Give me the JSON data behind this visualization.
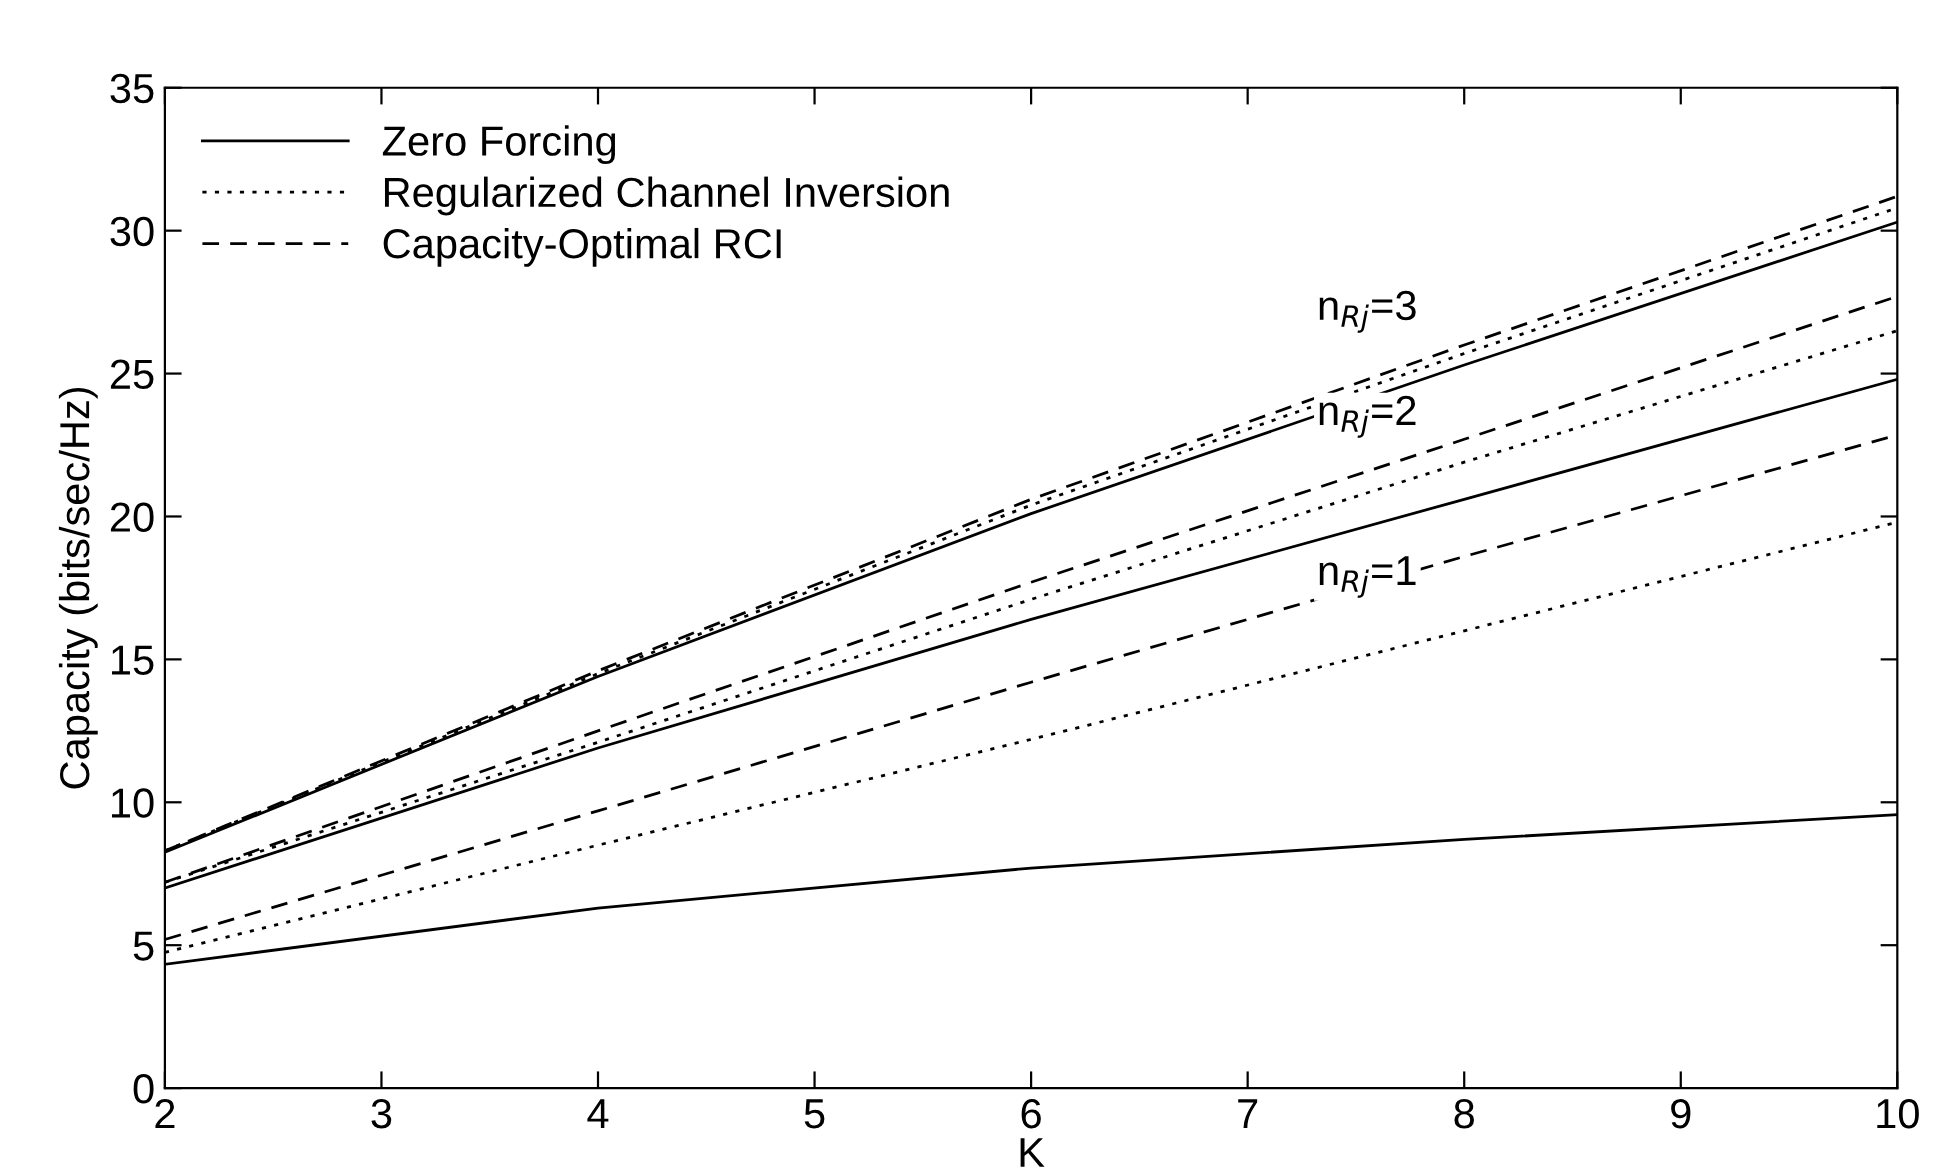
{
  "chart_data": {
    "type": "line",
    "xlabel": "K",
    "ylabel": "Capacity (bits/sec/Hz)",
    "x": [
      2,
      4,
      6,
      8,
      10
    ],
    "xlim": [
      2,
      10
    ],
    "xticks": [
      2,
      3,
      4,
      5,
      6,
      7,
      8,
      9,
      10
    ],
    "ylim": [
      0,
      35
    ],
    "yticks": [
      0,
      5,
      10,
      15,
      20,
      25,
      30,
      35
    ],
    "grid": false,
    "legend": "top left",
    "marker": "none",
    "series": [
      {
        "name": "Zero Forcing",
        "color": "#000000",
        "line_style": "solid",
        "values": [
          4.33,
          6.3,
          7.7,
          8.7,
          9.57
        ]
      },
      {
        "name": "Regularized Channel Inversion",
        "color": "#000000",
        "line_style": "dotted",
        "values": [
          4.75,
          8.5,
          12.2,
          16.0,
          19.8
        ]
      },
      {
        "name": "Capacity-Optimal RCI",
        "color": "#000000",
        "line_style": "dashed",
        "values": [
          5.2,
          9.7,
          14.2,
          18.6,
          22.85
        ]
      },
      {
        "color": "#000000",
        "line_style": "solid",
        "values": [
          7.0,
          11.9,
          16.4,
          20.6,
          24.8
        ]
      },
      {
        "color": "#000000",
        "line_style": "dotted",
        "values": [
          7.2,
          12.1,
          17.1,
          21.9,
          26.5
        ]
      },
      {
        "color": "#000000",
        "line_style": "dashed",
        "values": [
          7.2,
          12.5,
          17.7,
          22.7,
          27.7
        ]
      },
      {
        "color": "#000000",
        "line_style": "solid",
        "values": [
          8.25,
          14.4,
          20.1,
          25.3,
          30.3
        ]
      },
      {
        "color": "#000000",
        "line_style": "dotted",
        "values": [
          8.3,
          14.5,
          20.4,
          25.7,
          30.8
        ]
      },
      {
        "color": "#000000",
        "line_style": "dashed",
        "values": [
          8.3,
          14.6,
          20.6,
          26.0,
          31.2
        ]
      }
    ],
    "annotations": [
      "n$_{Rj}$=3",
      "n$_{Rj}$=2",
      "n$_{Rj}$=1"
    ]
  }
}
